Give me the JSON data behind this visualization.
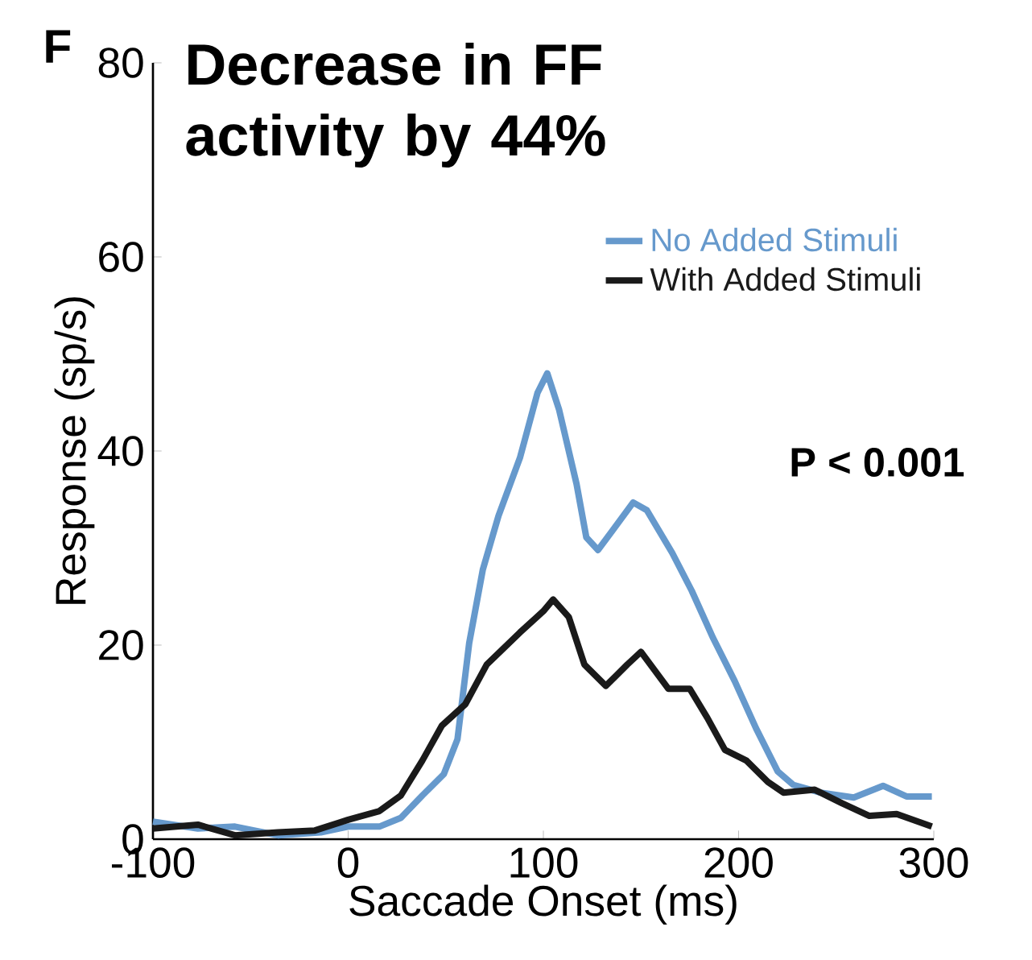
{
  "chart_data": {
    "type": "line",
    "title": "Decrease in FF activity by 44%",
    "xlabel": "Saccade Onset (ms)",
    "ylabel": "Response (sp/s)",
    "annotations": [
      "F",
      "P < 0.001"
    ],
    "xlim": [
      -100,
      300
    ],
    "ylim": [
      0,
      80
    ],
    "xticks": [
      -100,
      0,
      100,
      200,
      300
    ],
    "yticks": [
      0,
      20,
      40,
      60,
      80
    ],
    "legend": "top right",
    "grid": false,
    "marker": "none",
    "line_style": "solid",
    "series": [
      {
        "name": "No Added Stimuli",
        "color": "#6699cc",
        "x": [
          -100,
          -77,
          -58,
          -36,
          -14,
          0,
          16,
          27,
          38,
          49,
          56,
          62,
          69,
          77,
          88,
          97,
          102,
          108,
          117,
          122,
          128,
          135,
          146,
          153,
          166,
          176,
          187,
          198,
          209,
          220,
          228,
          242,
          259,
          274,
          286,
          299
        ],
        "values": [
          1.8,
          1.1,
          1.3,
          0.4,
          0.7,
          1.3,
          1.3,
          2.2,
          4.5,
          6.7,
          10.3,
          20.2,
          27.8,
          33.3,
          39.3,
          46,
          48,
          44.3,
          36.6,
          31.1,
          29.8,
          31.7,
          34.7,
          33.9,
          29.5,
          25.6,
          20.7,
          16.3,
          11.4,
          7.0,
          5.6,
          4.8,
          4.3,
          5.5,
          4.4,
          4.4
        ]
      },
      {
        "name": "With Added Stimuli",
        "color": "#1a1a1a",
        "x": [
          -100,
          -77,
          -58,
          -36,
          -17,
          0,
          16,
          27,
          38,
          48,
          60,
          71,
          88,
          100,
          105,
          113,
          121,
          132,
          143,
          150,
          164,
          175,
          184,
          193,
          204,
          215,
          223,
          239,
          253,
          267,
          281,
          299
        ],
        "values": [
          1.1,
          1.5,
          0.4,
          0.7,
          0.9,
          2.0,
          2.9,
          4.5,
          8.1,
          11.7,
          13.9,
          18.0,
          21.3,
          23.5,
          24.7,
          22.9,
          18.0,
          15.8,
          18.0,
          19.3,
          15.5,
          15.5,
          12.5,
          9.2,
          8.1,
          5.9,
          4.8,
          5.1,
          3.7,
          2.4,
          2.6,
          1.3
        ]
      }
    ]
  }
}
